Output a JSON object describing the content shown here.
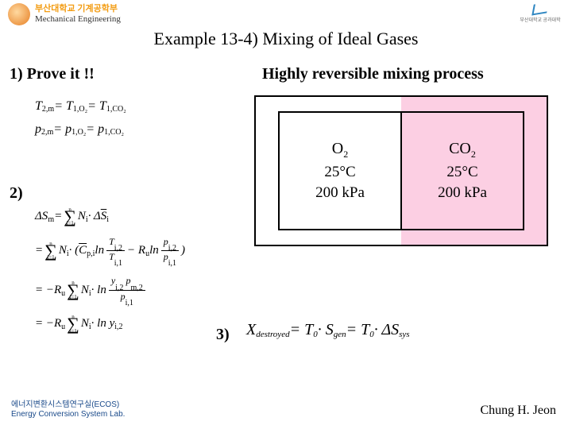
{
  "header": {
    "dept_kr": "부산대학교 기계공학부",
    "dept_en": "Mechanical Engineering",
    "logo_right_text": "부산대학교 공과대학"
  },
  "title": "Example 13-4) Mixing of Ideal Gases",
  "section1": {
    "label": "1)  Prove it !!",
    "subtitle": "Highly reversible mixing process",
    "eq_line1_lhs": "T",
    "eq_line1_sub1": "2,m",
    "eq_line1_mid": " = T",
    "eq_line1_sub2": "1,O₂",
    "eq_line1_rhs": " = T",
    "eq_line1_sub3": "1,CO₂",
    "eq_line2_lhs": "p",
    "eq_line2_sub1": "2,m",
    "eq_line2_mid": " = p",
    "eq_line2_sub2": "1,O₂",
    "eq_line2_rhs": " = p",
    "eq_line2_sub3": "1,CO₂"
  },
  "section2": {
    "label": "2)",
    "row1": "ΔS",
    "row1_sub": "m",
    "row1_eq": " = ",
    "row1_rhs": " N",
    "row1_rhs_sub": "i",
    "row1_dot": " · Δ",
    "row1_sbar": "S",
    "row1_sbar_sub": "i",
    "row2_eq": "= ",
    "row2_mid": " N",
    "row2_mid_sub": "i",
    "row2_paren_open": " · (",
    "row2_cp": "C",
    "row2_cp_sub": "p,i",
    "row2_ln1": " ln",
    "frac1_num": "T",
    "frac1_num_sub": "i,2",
    "frac1_den": "T",
    "frac1_den_sub": "i,1",
    "row2_minus": " − R",
    "row2_ru_sub": "u",
    "row2_ln2": " ln",
    "frac2_num": "p",
    "frac2_num_sub": "i,2",
    "frac2_den": "p",
    "frac2_den_sub": "i,1",
    "row2_paren_close": ")",
    "row3_eq": "= −R",
    "row3_ru_sub": "u",
    "row3_mid": " N",
    "row3_mid_sub": "i",
    "row3_ln": " · ln",
    "frac3_num": "y",
    "frac3_num_sub": "i,2",
    "frac3_num2": " p",
    "frac3_num2_sub": "m,2",
    "frac3_den": "p",
    "frac3_den_sub": "i,1",
    "row4_eq": "= −R",
    "row4_ru_sub": "u",
    "row4_mid": " N",
    "row4_mid_sub": "i",
    "row4_ln": " · ln y",
    "row4_y_sub": "i,2",
    "sigma_top": "n",
    "sigma_bot": "i=1"
  },
  "diagram": {
    "left": {
      "gas": "O",
      "gas_sub": "2",
      "temp": "25°C",
      "press": "200 kPa",
      "bg": "#ffffff"
    },
    "right": {
      "gas": "CO",
      "gas_sub": "2",
      "temp": "25°C",
      "press": "200 kPa",
      "bg": "#fccfe3"
    },
    "border_color": "#000000"
  },
  "section3": {
    "label": "3)",
    "lhs": "X",
    "lhs_sub": "destroyed",
    "eq1": " = T",
    "t0_sub": "0",
    "dot1": " · S",
    "sgen_sub": "gen",
    "eq2": " = T",
    "dot2": " · ΔS",
    "dsys_sub": "sys"
  },
  "footer": {
    "lab_kr": "에너지변환시스템연구실(ECOS)",
    "lab_en": "Energy Conversion System Lab.",
    "author": "Chung H. Jeon"
  },
  "colors": {
    "accent_orange": "#f39c12",
    "diagram_pink": "#fccfe3",
    "footer_blue": "#1a4a8a"
  }
}
